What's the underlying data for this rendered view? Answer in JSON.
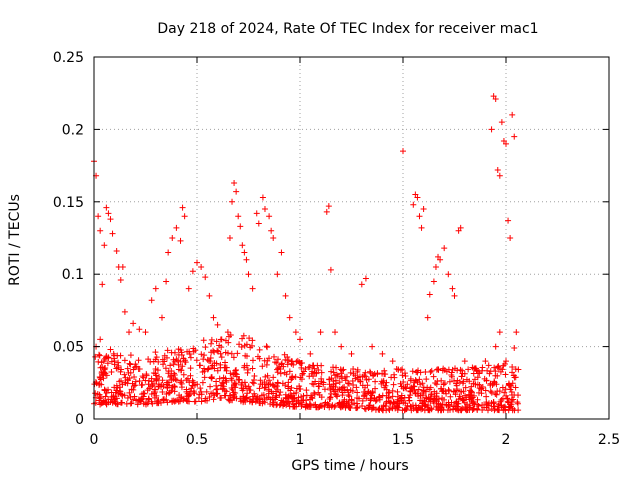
{
  "chart_data": {
    "type": "scatter",
    "title": "Day 218 of 2024, Rate Of TEC Index for receiver mac1",
    "xlabel": "GPS time / hours",
    "ylabel": "ROTI / TECUs",
    "xlim": [
      0,
      2.5
    ],
    "ylim": [
      0,
      0.25
    ],
    "x_ticks": [
      "0",
      "0.5",
      "1",
      "1.5",
      "2",
      "2.5"
    ],
    "y_ticks": [
      "0",
      "0.05",
      "0.1",
      "0.15",
      "0.2",
      "0.25"
    ],
    "grid": true,
    "marker": "+",
    "series": [
      {
        "name": "mac1",
        "color": "#ff0000",
        "points": [
          [
            0.0,
            0.178
          ],
          [
            0.01,
            0.168
          ],
          [
            0.02,
            0.14
          ],
          [
            0.03,
            0.13
          ],
          [
            0.04,
            0.093
          ],
          [
            0.05,
            0.12
          ],
          [
            0.06,
            0.146
          ],
          [
            0.07,
            0.142
          ],
          [
            0.08,
            0.138
          ],
          [
            0.09,
            0.128
          ],
          [
            0.11,
            0.116
          ],
          [
            0.12,
            0.105
          ],
          [
            0.13,
            0.096
          ],
          [
            0.14,
            0.105
          ],
          [
            0.01,
            0.05
          ],
          [
            0.03,
            0.055
          ],
          [
            0.05,
            0.035
          ],
          [
            0.08,
            0.048
          ],
          [
            0.1,
            0.04
          ],
          [
            0.15,
            0.074
          ],
          [
            0.17,
            0.06
          ],
          [
            0.19,
            0.066
          ],
          [
            0.22,
            0.062
          ],
          [
            0.25,
            0.06
          ],
          [
            0.28,
            0.082
          ],
          [
            0.3,
            0.09
          ],
          [
            0.33,
            0.07
          ],
          [
            0.35,
            0.095
          ],
          [
            0.36,
            0.115
          ],
          [
            0.38,
            0.125
          ],
          [
            0.4,
            0.132
          ],
          [
            0.42,
            0.123
          ],
          [
            0.43,
            0.146
          ],
          [
            0.44,
            0.14
          ],
          [
            0.46,
            0.09
          ],
          [
            0.48,
            0.102
          ],
          [
            0.5,
            0.108
          ],
          [
            0.52,
            0.105
          ],
          [
            0.54,
            0.098
          ],
          [
            0.56,
            0.085
          ],
          [
            0.58,
            0.07
          ],
          [
            0.6,
            0.065
          ],
          [
            0.62,
            0.055
          ],
          [
            0.65,
            0.06
          ],
          [
            0.66,
            0.125
          ],
          [
            0.67,
            0.15
          ],
          [
            0.68,
            0.163
          ],
          [
            0.69,
            0.157
          ],
          [
            0.7,
            0.14
          ],
          [
            0.71,
            0.133
          ],
          [
            0.72,
            0.12
          ],
          [
            0.73,
            0.115
          ],
          [
            0.74,
            0.11
          ],
          [
            0.75,
            0.1
          ],
          [
            0.77,
            0.09
          ],
          [
            0.79,
            0.142
          ],
          [
            0.8,
            0.135
          ],
          [
            0.82,
            0.153
          ],
          [
            0.83,
            0.145
          ],
          [
            0.85,
            0.14
          ],
          [
            0.86,
            0.13
          ],
          [
            0.87,
            0.125
          ],
          [
            0.89,
            0.1
          ],
          [
            0.91,
            0.115
          ],
          [
            0.93,
            0.085
          ],
          [
            0.95,
            0.07
          ],
          [
            0.98,
            0.06
          ],
          [
            1.0,
            0.055
          ],
          [
            1.05,
            0.045
          ],
          [
            1.1,
            0.06
          ],
          [
            1.13,
            0.143
          ],
          [
            1.14,
            0.147
          ],
          [
            1.15,
            0.103
          ],
          [
            1.17,
            0.06
          ],
          [
            1.2,
            0.05
          ],
          [
            1.25,
            0.045
          ],
          [
            1.3,
            0.093
          ],
          [
            1.32,
            0.097
          ],
          [
            1.35,
            0.05
          ],
          [
            1.4,
            0.045
          ],
          [
            1.45,
            0.04
          ],
          [
            1.5,
            0.185
          ],
          [
            1.55,
            0.148
          ],
          [
            1.56,
            0.155
          ],
          [
            1.57,
            0.153
          ],
          [
            1.58,
            0.14
          ],
          [
            1.59,
            0.132
          ],
          [
            1.6,
            0.145
          ],
          [
            1.62,
            0.07
          ],
          [
            1.63,
            0.086
          ],
          [
            1.65,
            0.095
          ],
          [
            1.66,
            0.105
          ],
          [
            1.67,
            0.112
          ],
          [
            1.68,
            0.11
          ],
          [
            1.7,
            0.118
          ],
          [
            1.72,
            0.1
          ],
          [
            1.74,
            0.09
          ],
          [
            1.75,
            0.085
          ],
          [
            1.77,
            0.13
          ],
          [
            1.78,
            0.132
          ],
          [
            1.8,
            0.04
          ],
          [
            1.85,
            0.035
          ],
          [
            1.9,
            0.04
          ],
          [
            1.93,
            0.2
          ],
          [
            1.94,
            0.223
          ],
          [
            1.95,
            0.221
          ],
          [
            1.96,
            0.172
          ],
          [
            1.97,
            0.168
          ],
          [
            1.98,
            0.205
          ],
          [
            1.99,
            0.192
          ],
          [
            2.0,
            0.19
          ],
          [
            2.01,
            0.137
          ],
          [
            2.02,
            0.125
          ],
          [
            2.03,
            0.21
          ],
          [
            2.04,
            0.195
          ],
          [
            2.05,
            0.06
          ],
          [
            2.04,
            0.049
          ],
          [
            1.95,
            0.05
          ],
          [
            1.97,
            0.06
          ],
          [
            2.0,
            0.04
          ]
        ],
        "dense_band": {
          "note": "continuous dense band of points between x=0 and x=2.06 with y mostly between 0.005 and 0.05",
          "x_range": [
            0.0,
            2.06
          ],
          "y_profile": [
            [
              0.0,
              0.01,
              0.045
            ],
            [
              0.25,
              0.01,
              0.045
            ],
            [
              0.4,
              0.012,
              0.05
            ],
            [
              0.55,
              0.012,
              0.055
            ],
            [
              0.7,
              0.012,
              0.06
            ],
            [
              0.85,
              0.01,
              0.05
            ],
            [
              1.0,
              0.008,
              0.04
            ],
            [
              1.2,
              0.008,
              0.035
            ],
            [
              1.4,
              0.006,
              0.035
            ],
            [
              1.6,
              0.006,
              0.035
            ],
            [
              1.8,
              0.006,
              0.035
            ],
            [
              2.06,
              0.006,
              0.04
            ]
          ]
        }
      }
    ]
  }
}
